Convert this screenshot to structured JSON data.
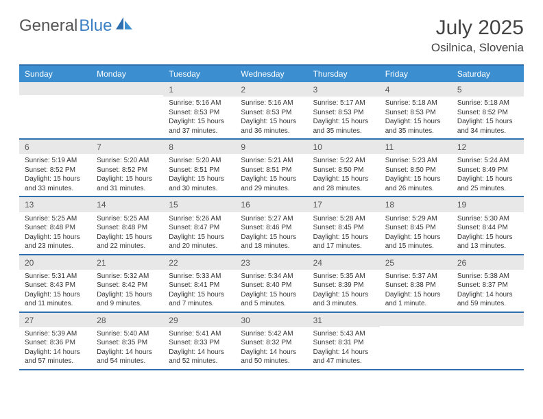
{
  "logo": {
    "text_gray": "General",
    "text_blue": "Blue"
  },
  "title": "July 2025",
  "location": "Osilnica, Slovenia",
  "colors": {
    "header_bg": "#3b8ed0",
    "border": "#2e6fb0",
    "daynum_bg": "#e8e8e8"
  },
  "day_headers": [
    "Sunday",
    "Monday",
    "Tuesday",
    "Wednesday",
    "Thursday",
    "Friday",
    "Saturday"
  ],
  "weeks": [
    [
      {
        "n": "",
        "sr": "",
        "ss": "",
        "dl": ""
      },
      {
        "n": "",
        "sr": "",
        "ss": "",
        "dl": ""
      },
      {
        "n": "1",
        "sr": "Sunrise: 5:16 AM",
        "ss": "Sunset: 8:53 PM",
        "dl": "Daylight: 15 hours and 37 minutes."
      },
      {
        "n": "2",
        "sr": "Sunrise: 5:16 AM",
        "ss": "Sunset: 8:53 PM",
        "dl": "Daylight: 15 hours and 36 minutes."
      },
      {
        "n": "3",
        "sr": "Sunrise: 5:17 AM",
        "ss": "Sunset: 8:53 PM",
        "dl": "Daylight: 15 hours and 35 minutes."
      },
      {
        "n": "4",
        "sr": "Sunrise: 5:18 AM",
        "ss": "Sunset: 8:53 PM",
        "dl": "Daylight: 15 hours and 35 minutes."
      },
      {
        "n": "5",
        "sr": "Sunrise: 5:18 AM",
        "ss": "Sunset: 8:52 PM",
        "dl": "Daylight: 15 hours and 34 minutes."
      }
    ],
    [
      {
        "n": "6",
        "sr": "Sunrise: 5:19 AM",
        "ss": "Sunset: 8:52 PM",
        "dl": "Daylight: 15 hours and 33 minutes."
      },
      {
        "n": "7",
        "sr": "Sunrise: 5:20 AM",
        "ss": "Sunset: 8:52 PM",
        "dl": "Daylight: 15 hours and 31 minutes."
      },
      {
        "n": "8",
        "sr": "Sunrise: 5:20 AM",
        "ss": "Sunset: 8:51 PM",
        "dl": "Daylight: 15 hours and 30 minutes."
      },
      {
        "n": "9",
        "sr": "Sunrise: 5:21 AM",
        "ss": "Sunset: 8:51 PM",
        "dl": "Daylight: 15 hours and 29 minutes."
      },
      {
        "n": "10",
        "sr": "Sunrise: 5:22 AM",
        "ss": "Sunset: 8:50 PM",
        "dl": "Daylight: 15 hours and 28 minutes."
      },
      {
        "n": "11",
        "sr": "Sunrise: 5:23 AM",
        "ss": "Sunset: 8:50 PM",
        "dl": "Daylight: 15 hours and 26 minutes."
      },
      {
        "n": "12",
        "sr": "Sunrise: 5:24 AM",
        "ss": "Sunset: 8:49 PM",
        "dl": "Daylight: 15 hours and 25 minutes."
      }
    ],
    [
      {
        "n": "13",
        "sr": "Sunrise: 5:25 AM",
        "ss": "Sunset: 8:48 PM",
        "dl": "Daylight: 15 hours and 23 minutes."
      },
      {
        "n": "14",
        "sr": "Sunrise: 5:25 AM",
        "ss": "Sunset: 8:48 PM",
        "dl": "Daylight: 15 hours and 22 minutes."
      },
      {
        "n": "15",
        "sr": "Sunrise: 5:26 AM",
        "ss": "Sunset: 8:47 PM",
        "dl": "Daylight: 15 hours and 20 minutes."
      },
      {
        "n": "16",
        "sr": "Sunrise: 5:27 AM",
        "ss": "Sunset: 8:46 PM",
        "dl": "Daylight: 15 hours and 18 minutes."
      },
      {
        "n": "17",
        "sr": "Sunrise: 5:28 AM",
        "ss": "Sunset: 8:45 PM",
        "dl": "Daylight: 15 hours and 17 minutes."
      },
      {
        "n": "18",
        "sr": "Sunrise: 5:29 AM",
        "ss": "Sunset: 8:45 PM",
        "dl": "Daylight: 15 hours and 15 minutes."
      },
      {
        "n": "19",
        "sr": "Sunrise: 5:30 AM",
        "ss": "Sunset: 8:44 PM",
        "dl": "Daylight: 15 hours and 13 minutes."
      }
    ],
    [
      {
        "n": "20",
        "sr": "Sunrise: 5:31 AM",
        "ss": "Sunset: 8:43 PM",
        "dl": "Daylight: 15 hours and 11 minutes."
      },
      {
        "n": "21",
        "sr": "Sunrise: 5:32 AM",
        "ss": "Sunset: 8:42 PM",
        "dl": "Daylight: 15 hours and 9 minutes."
      },
      {
        "n": "22",
        "sr": "Sunrise: 5:33 AM",
        "ss": "Sunset: 8:41 PM",
        "dl": "Daylight: 15 hours and 7 minutes."
      },
      {
        "n": "23",
        "sr": "Sunrise: 5:34 AM",
        "ss": "Sunset: 8:40 PM",
        "dl": "Daylight: 15 hours and 5 minutes."
      },
      {
        "n": "24",
        "sr": "Sunrise: 5:35 AM",
        "ss": "Sunset: 8:39 PM",
        "dl": "Daylight: 15 hours and 3 minutes."
      },
      {
        "n": "25",
        "sr": "Sunrise: 5:37 AM",
        "ss": "Sunset: 8:38 PM",
        "dl": "Daylight: 15 hours and 1 minute."
      },
      {
        "n": "26",
        "sr": "Sunrise: 5:38 AM",
        "ss": "Sunset: 8:37 PM",
        "dl": "Daylight: 14 hours and 59 minutes."
      }
    ],
    [
      {
        "n": "27",
        "sr": "Sunrise: 5:39 AM",
        "ss": "Sunset: 8:36 PM",
        "dl": "Daylight: 14 hours and 57 minutes."
      },
      {
        "n": "28",
        "sr": "Sunrise: 5:40 AM",
        "ss": "Sunset: 8:35 PM",
        "dl": "Daylight: 14 hours and 54 minutes."
      },
      {
        "n": "29",
        "sr": "Sunrise: 5:41 AM",
        "ss": "Sunset: 8:33 PM",
        "dl": "Daylight: 14 hours and 52 minutes."
      },
      {
        "n": "30",
        "sr": "Sunrise: 5:42 AM",
        "ss": "Sunset: 8:32 PM",
        "dl": "Daylight: 14 hours and 50 minutes."
      },
      {
        "n": "31",
        "sr": "Sunrise: 5:43 AM",
        "ss": "Sunset: 8:31 PM",
        "dl": "Daylight: 14 hours and 47 minutes."
      },
      {
        "n": "",
        "sr": "",
        "ss": "",
        "dl": ""
      },
      {
        "n": "",
        "sr": "",
        "ss": "",
        "dl": ""
      }
    ]
  ]
}
